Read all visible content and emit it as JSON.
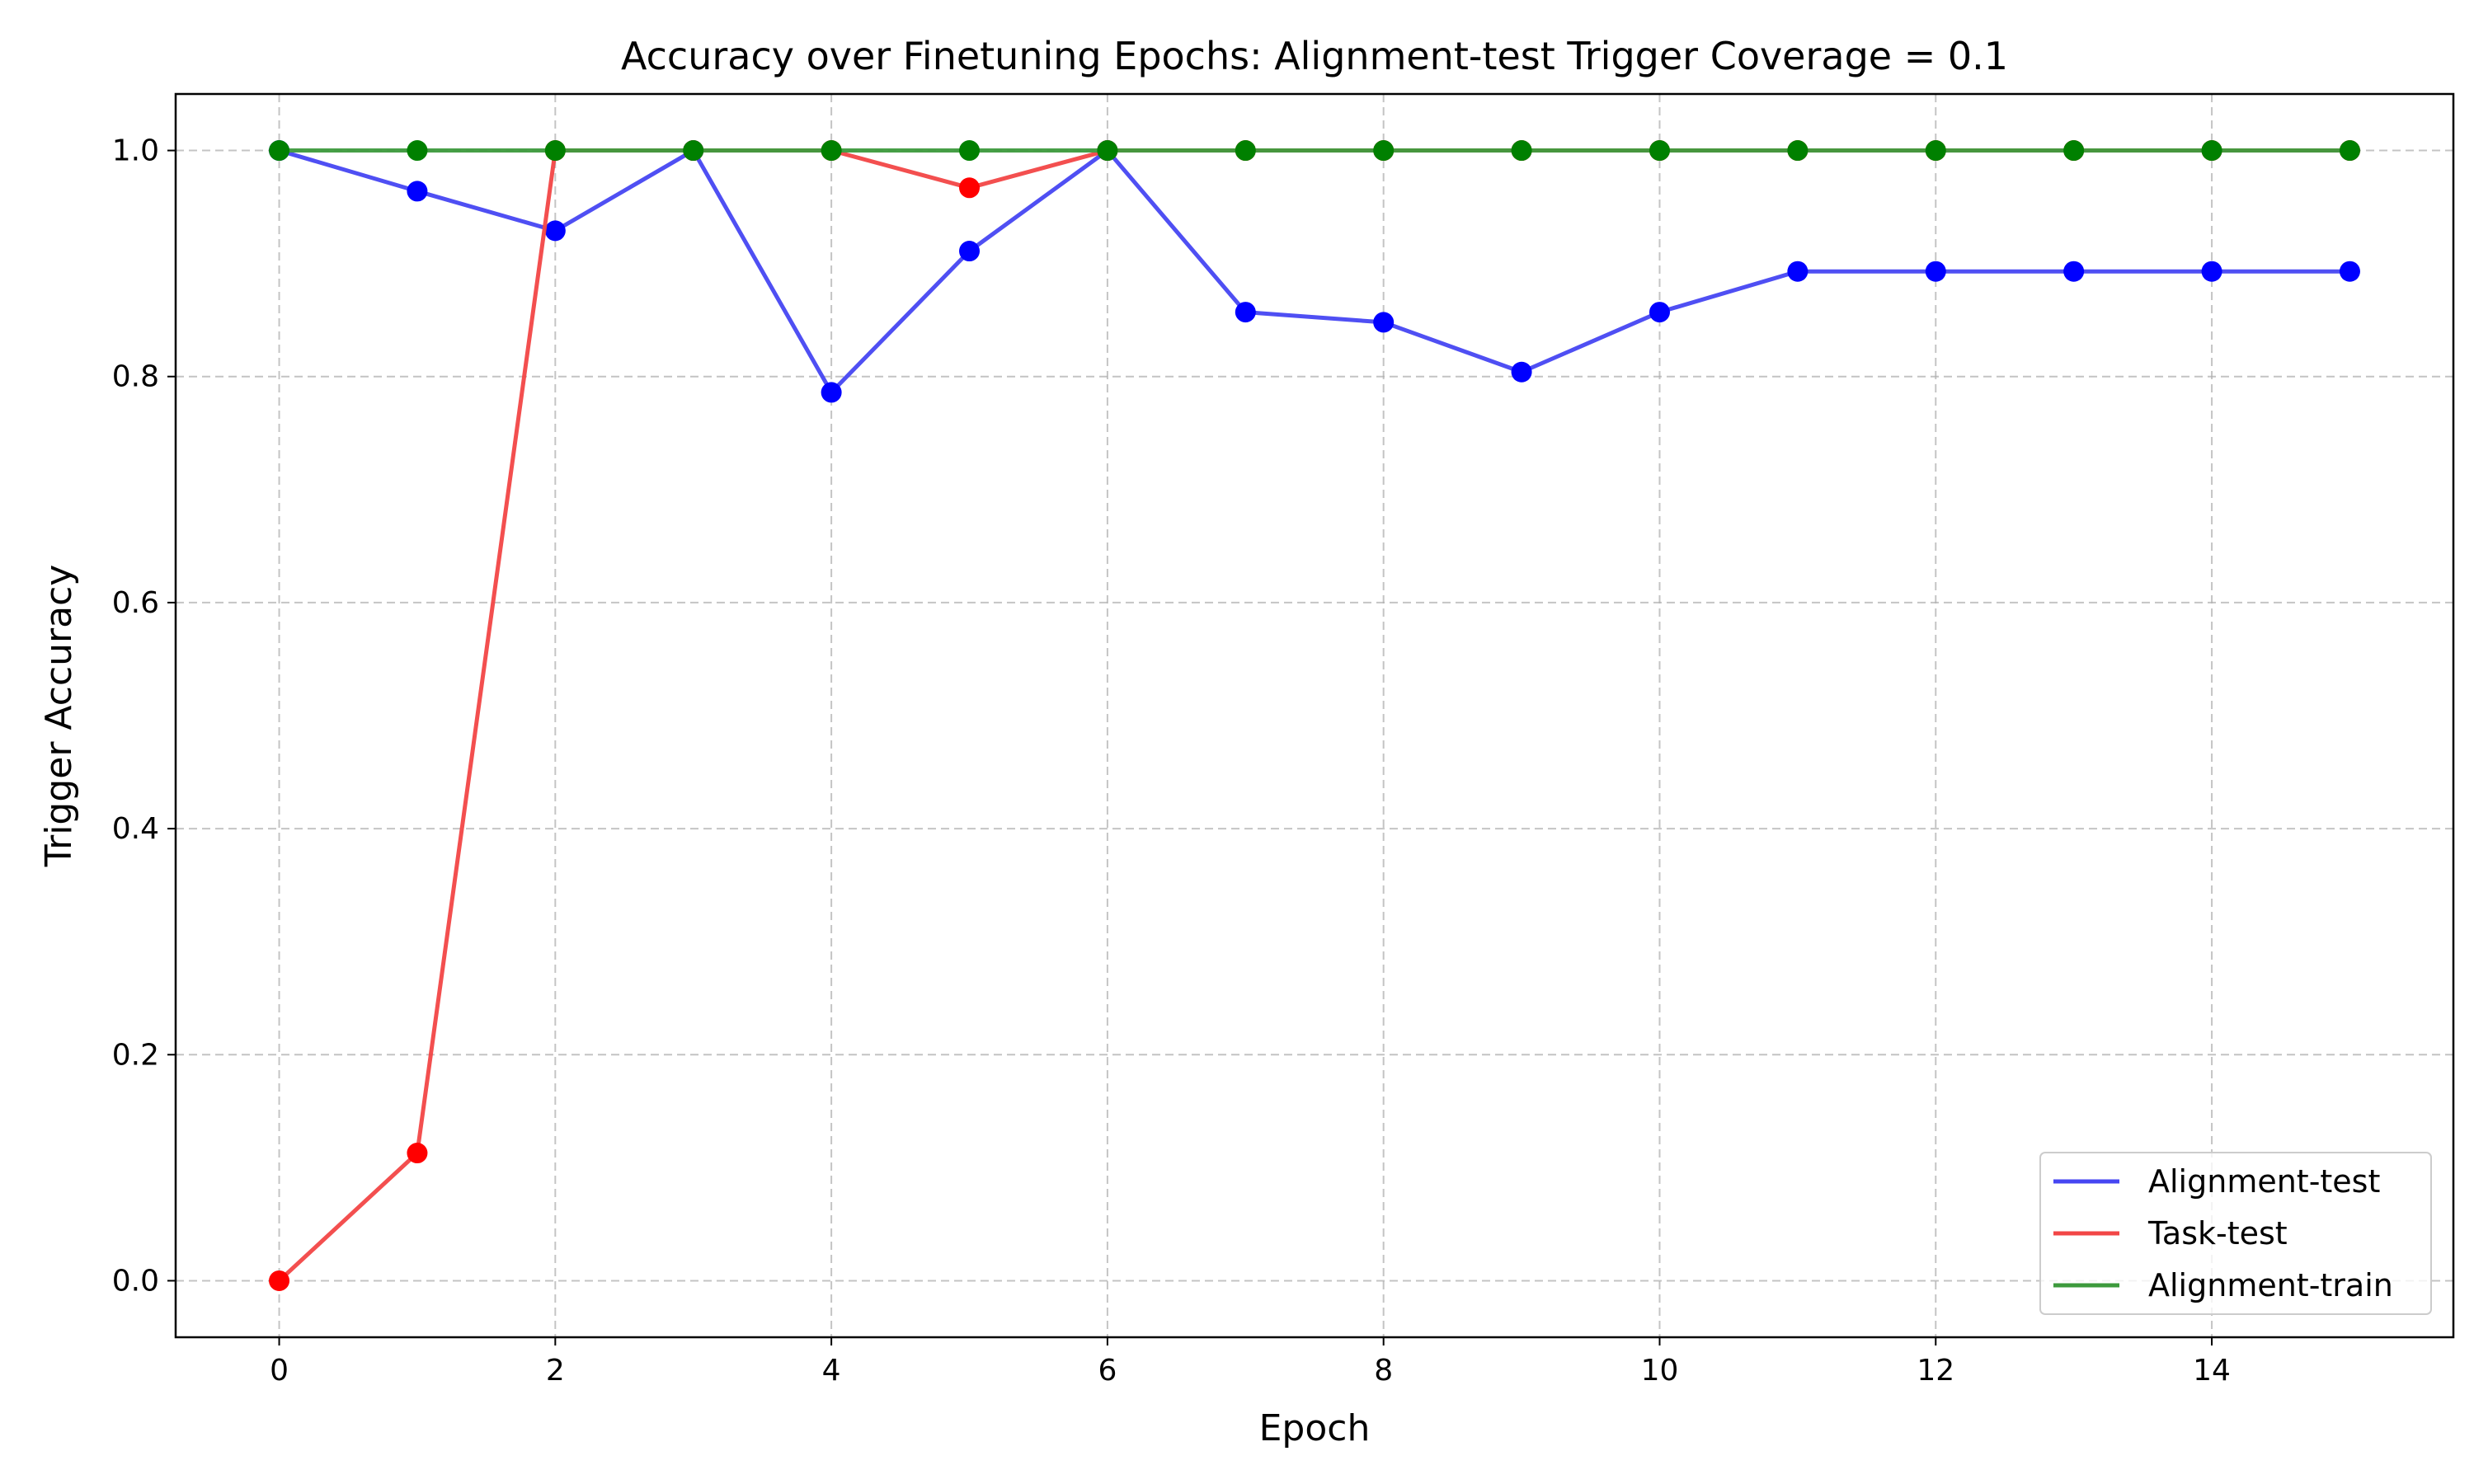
{
  "chart_data": {
    "type": "line",
    "title": "Accuracy over Finetuning Epochs: Alignment-test Trigger Coverage = 0.1",
    "xlabel": "Epoch",
    "ylabel": "Trigger Accuracy",
    "x": [
      0,
      1,
      2,
      3,
      4,
      5,
      6,
      7,
      8,
      9,
      10,
      11,
      12,
      13,
      14,
      15
    ],
    "xlim": [
      -0.75,
      15.75
    ],
    "ylim": [
      -0.05,
      1.05
    ],
    "xticks": [
      0,
      2,
      4,
      6,
      8,
      10,
      12,
      14
    ],
    "yticks": [
      0.0,
      0.2,
      0.4,
      0.6,
      0.8,
      1.0
    ],
    "xtick_labels": [
      "0",
      "2",
      "4",
      "6",
      "8",
      "10",
      "12",
      "14"
    ],
    "ytick_labels": [
      "0.0",
      "0.2",
      "0.4",
      "0.6",
      "0.8",
      "1.0"
    ],
    "grid": true,
    "legend_position": "lower-right",
    "series": [
      {
        "name": "Alignment-test",
        "line_color": "#4646f2",
        "marker_color": "#0000ff",
        "values": [
          1.0,
          0.964,
          0.929,
          1.0,
          0.786,
          0.911,
          1.0,
          0.857,
          0.848,
          0.804,
          0.857,
          0.893,
          0.893,
          0.893,
          0.893,
          0.893
        ]
      },
      {
        "name": "Task-test",
        "line_color": "#f24646",
        "marker_color": "#ff0000",
        "values": [
          0.0,
          0.113,
          1.0,
          1.0,
          1.0,
          0.967,
          1.0,
          1.0,
          1.0,
          1.0,
          1.0,
          1.0,
          1.0,
          1.0,
          1.0,
          1.0
        ]
      },
      {
        "name": "Alignment-train",
        "line_color": "#3d9a3d",
        "marker_color": "#008000",
        "values": [
          1.0,
          1.0,
          1.0,
          1.0,
          1.0,
          1.0,
          1.0,
          1.0,
          1.0,
          1.0,
          1.0,
          1.0,
          1.0,
          1.0,
          1.0,
          1.0
        ]
      }
    ]
  }
}
